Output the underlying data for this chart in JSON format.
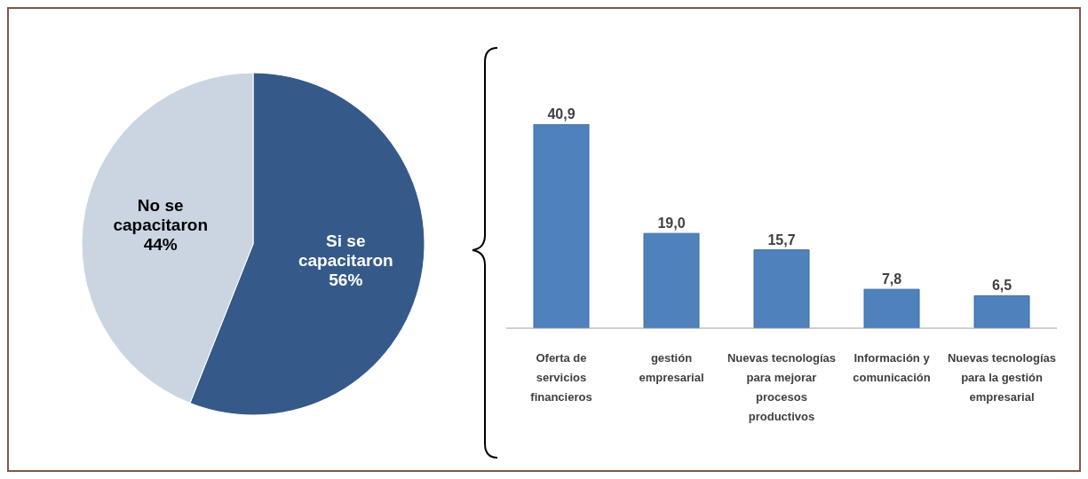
{
  "chart_data": [
    {
      "type": "pie",
      "categories": [
        "Si se capacitaron",
        "No se capacitaron"
      ],
      "values": [
        56,
        44
      ],
      "colors": [
        "#355a8a",
        "#cbd5e2"
      ],
      "value_labels": [
        "56%",
        "44%"
      ]
    },
    {
      "type": "bar",
      "categories": [
        "Oferta de servicios financieros",
        "gestión empresarial",
        "Nuevas tecnologías para mejorar procesos productivos",
        "Información y comunicación",
        "Nuevas tecnologías para la gestión empresarial"
      ],
      "values": [
        40.9,
        19.0,
        15.7,
        7.8,
        6.5
      ],
      "color": "#4f81bd",
      "value_labels": [
        "40,9",
        "19,0",
        "15,7",
        "7,8",
        "6,5"
      ]
    }
  ]
}
